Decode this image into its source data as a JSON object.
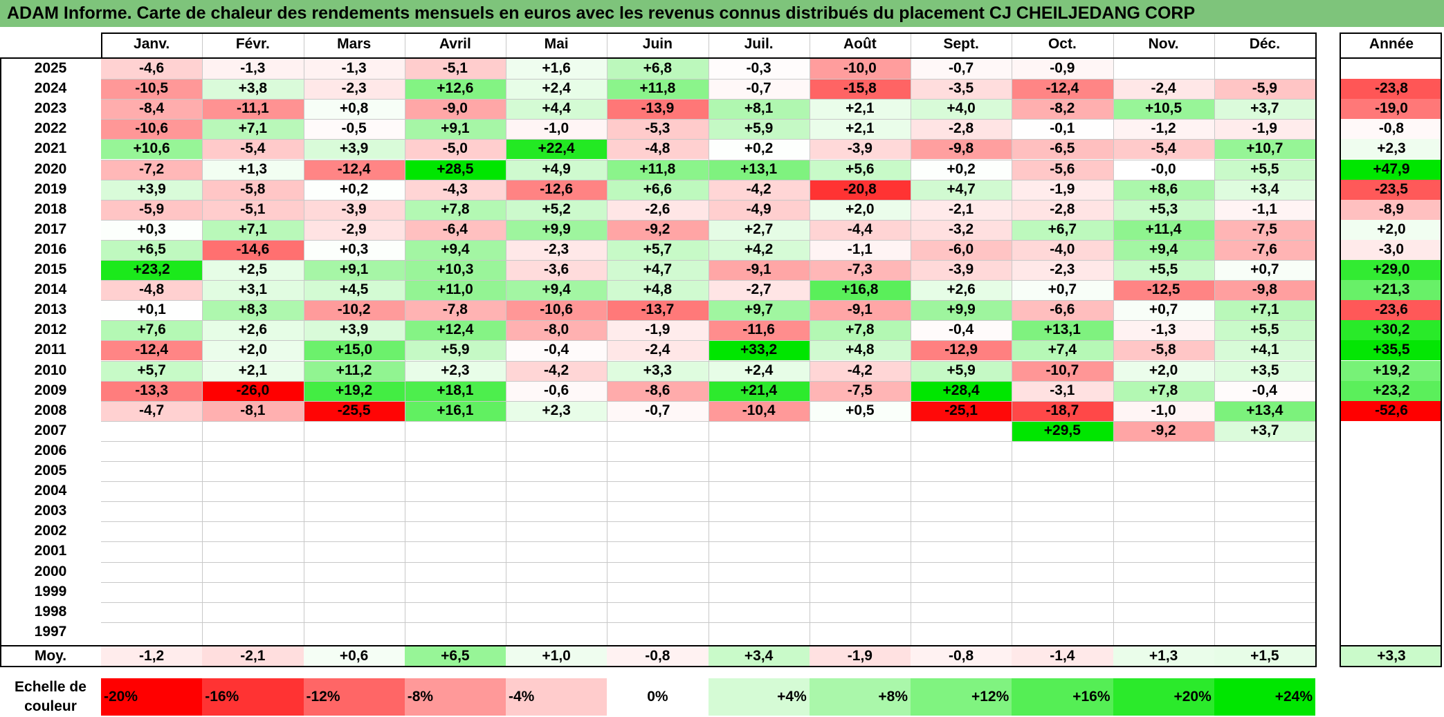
{
  "title": "ADAM Informe. Carte de chaleur des rendements mensuels en euros avec les revenus connus distribués du placement CJ CHEILJEDANG CORP",
  "chart_data": {
    "type": "heatmap",
    "title": "ADAM Informe. Carte de chaleur des rendements mensuels en euros avec les revenus connus distribués du placement CJ CHEILJEDANG CORP",
    "months": [
      "Janv.",
      "Févr.",
      "Mars",
      "Avril",
      "Mai",
      "Juin",
      "Juil.",
      "Août",
      "Sept.",
      "Oct.",
      "Nov.",
      "Déc."
    ],
    "year_header": "Année",
    "rows": [
      {
        "year": "2025",
        "values": [
          "-4,6",
          "-1,3",
          "-1,3",
          "-5,1",
          "+1,6",
          "+6,8",
          "-0,3",
          "-10,0",
          "-0,7",
          "-0,9",
          "",
          ""
        ],
        "annual": ""
      },
      {
        "year": "2024",
        "values": [
          "-10,5",
          "+3,8",
          "-2,3",
          "+12,6",
          "+2,4",
          "+11,8",
          "-0,7",
          "-15,8",
          "-3,5",
          "-12,4",
          "-2,4",
          "-5,9"
        ],
        "annual": "-23,8"
      },
      {
        "year": "2023",
        "values": [
          "-8,4",
          "-11,1",
          "+0,8",
          "-9,0",
          "+4,4",
          "-13,9",
          "+8,1",
          "+2,1",
          "+4,0",
          "-8,2",
          "+10,5",
          "+3,7"
        ],
        "annual": "-19,0"
      },
      {
        "year": "2022",
        "values": [
          "-10,6",
          "+7,1",
          "-0,5",
          "+9,1",
          "-1,0",
          "-5,3",
          "+5,9",
          "+2,1",
          "-2,8",
          "-0,1",
          "-1,2",
          "-1,9"
        ],
        "annual": "-0,8"
      },
      {
        "year": "2021",
        "values": [
          "+10,6",
          "-5,4",
          "+3,9",
          "-5,0",
          "+22,4",
          "-4,8",
          "+0,2",
          "-3,9",
          "-9,8",
          "-6,5",
          "-5,4",
          "+10,7"
        ],
        "annual": "+2,3"
      },
      {
        "year": "2020",
        "values": [
          "-7,2",
          "+1,3",
          "-12,4",
          "+28,5",
          "+4,9",
          "+11,8",
          "+13,1",
          "+5,6",
          "+0,2",
          "-5,6",
          "-0,0",
          "+5,5"
        ],
        "annual": "+47,9"
      },
      {
        "year": "2019",
        "values": [
          "+3,9",
          "-5,8",
          "+0,2",
          "-4,3",
          "-12,6",
          "+6,6",
          "-4,2",
          "-20,8",
          "+4,7",
          "-1,9",
          "+8,6",
          "+3,4"
        ],
        "annual": "-23,5"
      },
      {
        "year": "2018",
        "values": [
          "-5,9",
          "-5,1",
          "-3,9",
          "+7,8",
          "+5,2",
          "-2,6",
          "-4,9",
          "+2,0",
          "-2,1",
          "-2,8",
          "+5,3",
          "-1,1"
        ],
        "annual": "-8,9"
      },
      {
        "year": "2017",
        "values": [
          "+0,3",
          "+7,1",
          "-2,9",
          "-6,4",
          "+9,9",
          "-9,2",
          "+2,7",
          "-4,4",
          "-3,2",
          "+6,7",
          "+11,4",
          "-7,5"
        ],
        "annual": "+2,0"
      },
      {
        "year": "2016",
        "values": [
          "+6,5",
          "-14,6",
          "+0,3",
          "+9,4",
          "-2,3",
          "+5,7",
          "+4,2",
          "-1,1",
          "-6,0",
          "-4,0",
          "+9,4",
          "-7,6"
        ],
        "annual": "-3,0"
      },
      {
        "year": "2015",
        "values": [
          "+23,2",
          "+2,5",
          "+9,1",
          "+10,3",
          "-3,6",
          "+4,7",
          "-9,1",
          "-7,3",
          "-3,9",
          "-2,3",
          "+5,5",
          "+0,7"
        ],
        "annual": "+29,0"
      },
      {
        "year": "2014",
        "values": [
          "-4,8",
          "+3,1",
          "+4,5",
          "+11,0",
          "+9,4",
          "+4,8",
          "-2,7",
          "+16,8",
          "+2,6",
          "+0,7",
          "-12,5",
          "-9,8"
        ],
        "annual": "+21,3"
      },
      {
        "year": "2013",
        "values": [
          "+0,1",
          "+8,3",
          "-10,2",
          "-7,8",
          "-10,6",
          "-13,7",
          "+9,7",
          "-9,1",
          "+9,9",
          "-6,6",
          "+0,7",
          "+7,1"
        ],
        "annual": "-23,6"
      },
      {
        "year": "2012",
        "values": [
          "+7,6",
          "+2,6",
          "+3,9",
          "+12,4",
          "-8,0",
          "-1,9",
          "-11,6",
          "+7,8",
          "-0,4",
          "+13,1",
          "-1,3",
          "+5,5"
        ],
        "annual": "+30,2"
      },
      {
        "year": "2011",
        "values": [
          "-12,4",
          "+2,0",
          "+15,0",
          "+5,9",
          "-0,4",
          "-2,4",
          "+33,2",
          "+4,8",
          "-12,9",
          "+7,4",
          "-5,8",
          "+4,1"
        ],
        "annual": "+35,5"
      },
      {
        "year": "2010",
        "values": [
          "+5,7",
          "+2,1",
          "+11,2",
          "+2,3",
          "-4,2",
          "+3,3",
          "+2,4",
          "-4,2",
          "+5,9",
          "-10,7",
          "+2,0",
          "+3,5"
        ],
        "annual": "+19,2"
      },
      {
        "year": "2009",
        "values": [
          "-13,3",
          "-26,0",
          "+19,2",
          "+18,1",
          "-0,6",
          "-8,6",
          "+21,4",
          "-7,5",
          "+28,4",
          "-3,1",
          "+7,8",
          "-0,4"
        ],
        "annual": "+23,2"
      },
      {
        "year": "2008",
        "values": [
          "-4,7",
          "-8,1",
          "-25,5",
          "+16,1",
          "+2,3",
          "-0,7",
          "-10,4",
          "+0,5",
          "-25,1",
          "-18,7",
          "-1,0",
          "+13,4"
        ],
        "annual": "-52,6"
      },
      {
        "year": "2007",
        "values": [
          "",
          "",
          "",
          "",
          "",
          "",
          "",
          "",
          "",
          "+29,5",
          "-9,2",
          "+3,7"
        ],
        "annual": ""
      },
      {
        "year": "2006",
        "values": [
          "",
          "",
          "",
          "",
          "",
          "",
          "",
          "",
          "",
          "",
          "",
          ""
        ],
        "annual": ""
      },
      {
        "year": "2005",
        "values": [
          "",
          "",
          "",
          "",
          "",
          "",
          "",
          "",
          "",
          "",
          "",
          ""
        ],
        "annual": ""
      },
      {
        "year": "2004",
        "values": [
          "",
          "",
          "",
          "",
          "",
          "",
          "",
          "",
          "",
          "",
          "",
          ""
        ],
        "annual": ""
      },
      {
        "year": "2003",
        "values": [
          "",
          "",
          "",
          "",
          "",
          "",
          "",
          "",
          "",
          "",
          "",
          ""
        ],
        "annual": ""
      },
      {
        "year": "2002",
        "values": [
          "",
          "",
          "",
          "",
          "",
          "",
          "",
          "",
          "",
          "",
          "",
          ""
        ],
        "annual": ""
      },
      {
        "year": "2001",
        "values": [
          "",
          "",
          "",
          "",
          "",
          "",
          "",
          "",
          "",
          "",
          "",
          ""
        ],
        "annual": ""
      },
      {
        "year": "2000",
        "values": [
          "",
          "",
          "",
          "",
          "",
          "",
          "",
          "",
          "",
          "",
          "",
          ""
        ],
        "annual": ""
      },
      {
        "year": "1999",
        "values": [
          "",
          "",
          "",
          "",
          "",
          "",
          "",
          "",
          "",
          "",
          "",
          ""
        ],
        "annual": ""
      },
      {
        "year": "1998",
        "values": [
          "",
          "",
          "",
          "",
          "",
          "",
          "",
          "",
          "",
          "",
          "",
          ""
        ],
        "annual": ""
      },
      {
        "year": "1997",
        "values": [
          "",
          "",
          "",
          "",
          "",
          "",
          "",
          "",
          "",
          "",
          "",
          ""
        ],
        "annual": ""
      }
    ],
    "average": {
      "label": "Moy.",
      "values": [
        "-1,2",
        "-2,1",
        "+0,6",
        "+6,5",
        "+1,0",
        "-0,8",
        "+3,4",
        "-1,9",
        "-0,8",
        "-1,4",
        "+1,3",
        "+1,5"
      ],
      "annual": "+3,3"
    },
    "color_scale": {
      "label": "Echelle de couleur",
      "stops": [
        "-20%",
        "-16%",
        "-12%",
        "-8%",
        "-4%",
        "0%",
        "+4%",
        "+8%",
        "+12%",
        "+16%",
        "+20%",
        "+24%"
      ]
    },
    "colors": {
      "negative_max": "#ff0000",
      "neutral": "#ffffff",
      "positive_max": "#00e600",
      "title_bar": "#7ec47b"
    }
  }
}
